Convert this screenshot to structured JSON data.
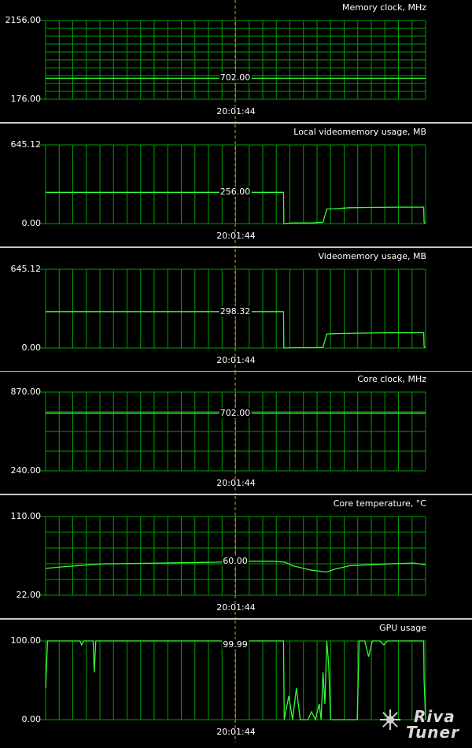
{
  "graphs": [
    {
      "title": "Memory clock, MHz",
      "max_label": "2156.00",
      "min_label": "176.00",
      "current_label": "702.00",
      "time_label": "20:01:44",
      "range": [
        176,
        2156
      ],
      "grid_rows": 10,
      "series": [
        [
          0,
          702
        ],
        [
          1,
          702
        ]
      ]
    },
    {
      "title": "Local videomemory usage, MB",
      "max_label": "645.12",
      "min_label": "0.00",
      "current_label": "256.00",
      "time_label": "20:01:44",
      "range": [
        0,
        645.12
      ],
      "grid_rows": 1,
      "series": [
        [
          0,
          256
        ],
        [
          0.626,
          256
        ],
        [
          0.627,
          0
        ],
        [
          0.65,
          5
        ],
        [
          0.66,
          5
        ],
        [
          0.7,
          5
        ],
        [
          0.73,
          10
        ],
        [
          0.74,
          120
        ],
        [
          0.76,
          122
        ],
        [
          0.8,
          130
        ],
        [
          0.85,
          132
        ],
        [
          0.93,
          135
        ],
        [
          0.995,
          135
        ],
        [
          0.996,
          10
        ],
        [
          1,
          0
        ]
      ]
    },
    {
      "title": "Videomemory usage, MB",
      "max_label": "645.12",
      "min_label": "0.00",
      "current_label": "298.32",
      "time_label": "20:01:44",
      "range": [
        0,
        645.12
      ],
      "grid_rows": 1,
      "series": [
        [
          0,
          298.32
        ],
        [
          0.626,
          298.32
        ],
        [
          0.627,
          0
        ],
        [
          0.66,
          3
        ],
        [
          0.7,
          3
        ],
        [
          0.73,
          5
        ],
        [
          0.74,
          115
        ],
        [
          0.76,
          118
        ],
        [
          0.82,
          122
        ],
        [
          0.9,
          125
        ],
        [
          0.995,
          125
        ],
        [
          0.996,
          10
        ],
        [
          1,
          0
        ]
      ]
    },
    {
      "title": "Core clock, MHz",
      "max_label": "870.00",
      "min_label": "240.00",
      "current_label": "702.00",
      "time_label": "20:01:44",
      "range": [
        240,
        870
      ],
      "grid_rows": 4,
      "series": [
        [
          0,
          702
        ],
        [
          1,
          702
        ]
      ]
    },
    {
      "title": "Core temperature, °C",
      "max_label": "110.00",
      "min_label": "22.00",
      "current_label": "60.00",
      "time_label": "20:01:44",
      "range": [
        22,
        110
      ],
      "grid_rows": 5,
      "series": [
        [
          0,
          52
        ],
        [
          0.05,
          54
        ],
        [
          0.15,
          57
        ],
        [
          0.3,
          58
        ],
        [
          0.45,
          59
        ],
        [
          0.5,
          60
        ],
        [
          0.6,
          60
        ],
        [
          0.63,
          59
        ],
        [
          0.65,
          55
        ],
        [
          0.7,
          50
        ],
        [
          0.74,
          48
        ],
        [
          0.76,
          51
        ],
        [
          0.8,
          55
        ],
        [
          0.9,
          57
        ],
        [
          0.97,
          58
        ],
        [
          1,
          56
        ]
      ]
    },
    {
      "title": "GPU usage",
      "max_label": "100.00",
      "min_label": "0.00",
      "current_label": "99.99",
      "time_label": "20:01:44",
      "range": [
        0,
        100
      ],
      "grid_rows": 1,
      "series": [
        [
          0,
          40
        ],
        [
          0.005,
          100
        ],
        [
          0.09,
          100
        ],
        [
          0.095,
          95
        ],
        [
          0.1,
          100
        ],
        [
          0.125,
          100
        ],
        [
          0.128,
          60
        ],
        [
          0.132,
          100
        ],
        [
          0.626,
          100
        ],
        [
          0.628,
          0
        ],
        [
          0.64,
          30
        ],
        [
          0.65,
          0
        ],
        [
          0.66,
          40
        ],
        [
          0.67,
          0
        ],
        [
          0.69,
          0
        ],
        [
          0.7,
          10
        ],
        [
          0.71,
          0
        ],
        [
          0.72,
          20
        ],
        [
          0.725,
          0
        ],
        [
          0.73,
          60
        ],
        [
          0.735,
          20
        ],
        [
          0.74,
          100
        ],
        [
          0.745,
          70
        ],
        [
          0.75,
          0
        ],
        [
          0.76,
          0
        ],
        [
          0.8,
          0
        ],
        [
          0.82,
          0
        ],
        [
          0.825,
          100
        ],
        [
          0.83,
          100
        ],
        [
          0.84,
          100
        ],
        [
          0.85,
          80
        ],
        [
          0.86,
          100
        ],
        [
          0.88,
          100
        ],
        [
          0.89,
          95
        ],
        [
          0.9,
          100
        ],
        [
          0.995,
          100
        ],
        [
          0.996,
          50
        ],
        [
          1,
          0
        ]
      ]
    }
  ],
  "logo": {
    "text_top": "Riva",
    "text_bottom": "Tuner"
  }
}
